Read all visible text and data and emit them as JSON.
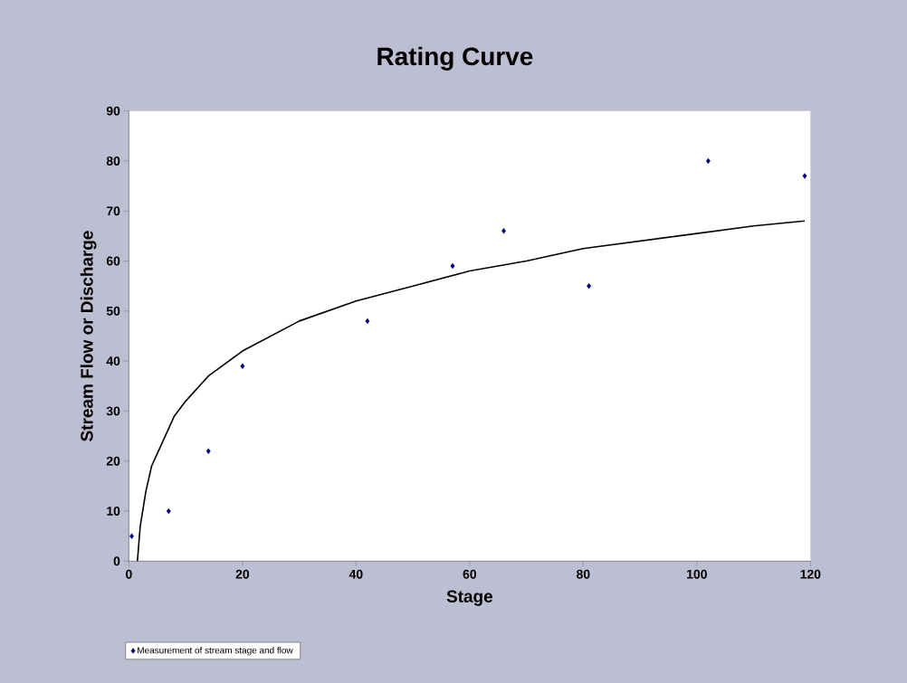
{
  "chart_data": {
    "type": "scatter",
    "title": "Rating Curve",
    "xlabel": "Stage",
    "ylabel": "Stream Flow or Discharge",
    "xlim": [
      0,
      120
    ],
    "ylim": [
      0,
      90
    ],
    "xticks": [
      0,
      20,
      40,
      60,
      80,
      100,
      120
    ],
    "yticks": [
      0,
      10,
      20,
      30,
      40,
      50,
      60,
      70,
      80,
      90
    ],
    "legend": "bottom left",
    "series": [
      {
        "name": "Measurement of stream stage and flow",
        "marker": "diamond",
        "color": "#000080",
        "x": [
          0.5,
          7,
          14,
          20,
          42,
          57,
          66,
          81,
          102,
          119
        ],
        "values": [
          5,
          10,
          22,
          39,
          48,
          59,
          66,
          55,
          80,
          77
        ]
      },
      {
        "type": "line",
        "marker": "none",
        "color": "#000000",
        "x": [
          1.5,
          2,
          3,
          4,
          6,
          8,
          10,
          14,
          20,
          30,
          40,
          50,
          60,
          70,
          80,
          90,
          100,
          110,
          119
        ],
        "values": [
          0,
          7,
          14,
          19,
          24,
          29,
          32,
          37,
          42,
          48,
          52,
          55,
          58,
          60,
          62.5,
          64,
          65.5,
          67,
          68
        ]
      }
    ]
  }
}
